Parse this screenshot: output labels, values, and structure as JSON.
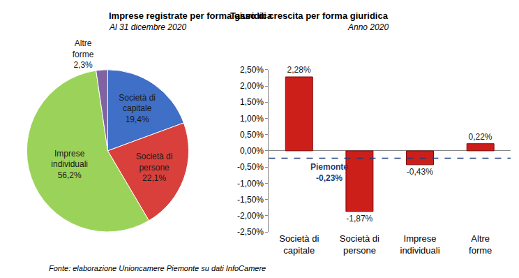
{
  "chart_data": [
    {
      "type": "pie",
      "title": "Imprese registrate per forma giuridica",
      "subtitle": "Al 31 dicembre 2020",
      "categories": [
        "Società di capitale",
        "Società di persone",
        "Imprese individuali",
        "Altre forme"
      ],
      "values": [
        19.4,
        22.1,
        56.2,
        2.3
      ],
      "value_labels": [
        "19,4%",
        "22,1%",
        "56,2%",
        "2,3%"
      ],
      "colors": [
        "#3f6fc6",
        "#d9403c",
        "#9bd35a",
        "#8064a2"
      ],
      "data_labels": true
    },
    {
      "type": "bar",
      "title": "Tasso di crescita per forma giuridica",
      "subtitle": "Anno 2020",
      "categories": [
        "Società di capitale",
        "Società di persone",
        "Imprese individuali",
        "Altre forme"
      ],
      "values": [
        2.28,
        -1.87,
        -0.43,
        0.22
      ],
      "value_labels": [
        "2,28%",
        "-1,87%",
        "-0,43%",
        "0,22%"
      ],
      "color": "#cc1f1a",
      "data_labels": true,
      "grid": false,
      "ylim": [
        -2.5,
        2.5
      ],
      "yticks": [
        {
          "value": -2.5,
          "label": "-2,50%"
        },
        {
          "value": -2.0,
          "label": "-2,00%"
        },
        {
          "value": -1.5,
          "label": "-1,50%"
        },
        {
          "value": -1.0,
          "label": "-1,00%"
        },
        {
          "value": -0.5,
          "label": "-0,50%"
        },
        {
          "value": 0,
          "label": "0,00%"
        },
        {
          "value": 0.5,
          "label": "0,50%"
        },
        {
          "value": 1.0,
          "label": "1,00%"
        },
        {
          "value": 1.5,
          "label": "1,50%"
        },
        {
          "value": 2.0,
          "label": "2,00%"
        },
        {
          "value": 2.5,
          "label": "2,50%"
        }
      ],
      "reference": {
        "value": -0.23,
        "label": "Piemonte",
        "value_label": "-0,23%",
        "color": "#1f3d7a",
        "line_style": "dashed"
      }
    }
  ],
  "source": "Fonte: elaborazione Unioncamere Piemonte su dati InfoCamere"
}
